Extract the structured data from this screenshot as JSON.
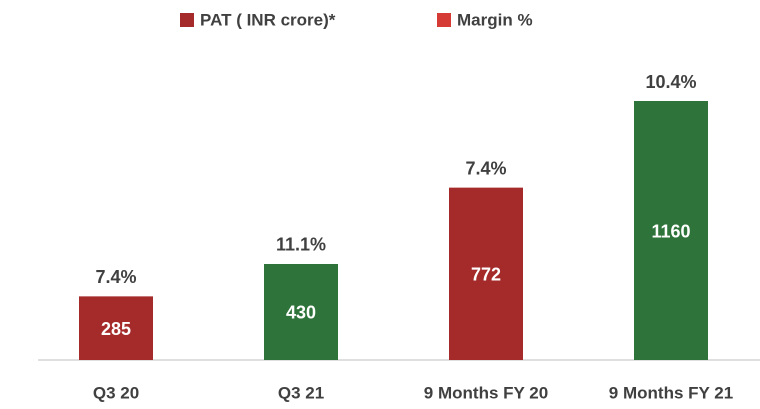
{
  "chart_data": {
    "type": "bar",
    "categories": [
      "Q3 20",
      "Q3 21",
      "9 Months FY 20",
      "9 Months FY 21"
    ],
    "series": [
      {
        "name": "PAT ( INR crore)*",
        "color": "#a52a2a",
        "values": [
          285,
          430,
          772,
          1160
        ],
        "colors": [
          "#a52a2a",
          "#2e7339",
          "#a52a2a",
          "#2e7339"
        ]
      },
      {
        "name": "Margin %",
        "color": "#d63a34",
        "values": [
          7.4,
          11.1,
          7.4,
          10.4
        ],
        "value_labels": [
          "7.4%",
          "11.1%",
          "7.4%",
          "10.4%"
        ]
      }
    ],
    "legend": "top"
  }
}
